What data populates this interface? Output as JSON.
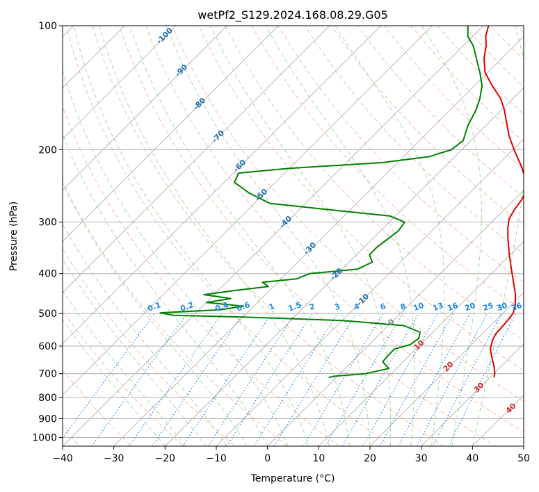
{
  "chart_data": {
    "type": "line",
    "title": "wetPf2_S129.2024.168.08.29.G05",
    "xlabel": "Temperature (°C)",
    "ylabel": "Pressure (hPa)",
    "xlim": [
      -40,
      50
    ],
    "ylim": [
      1050,
      100
    ],
    "y_scale": "log",
    "x_ticks": [
      -40,
      -30,
      -20,
      -10,
      0,
      10,
      20,
      30,
      40,
      50
    ],
    "y_ticks": [
      1000,
      900,
      800,
      700,
      600,
      500,
      400,
      300,
      200,
      100
    ],
    "grid": true,
    "skew": true,
    "isotherm_labels": [
      -100,
      -90,
      -80,
      -70,
      -60,
      -50,
      -40,
      -30,
      -20,
      -10,
      0,
      10,
      20,
      30,
      40
    ],
    "mixing_ratio_labels": [
      "0.1",
      "0.2",
      "0.4",
      "0.6",
      "1",
      "1.5",
      "2",
      "3",
      "4",
      "6",
      "8",
      "10",
      "13",
      "16",
      "20",
      "25",
      "30",
      "36"
    ],
    "colors": {
      "temperature": "#e00000",
      "dewpoint": "#008000",
      "dry_adiabat": "#f4a582",
      "moist_adiabat": "#9ecf9e",
      "mixing_ratio": "#1e88e5",
      "isotherm": "#b0b0b0",
      "isotherm_label_cold": "#1f6fb2",
      "isotherm_label_warm": "#d62728",
      "isotherm_label_zero": "#7f7f7f"
    },
    "series": [
      {
        "name": "Temperature",
        "points": [
          {
            "p": 715,
            "t": 30.8
          },
          {
            "p": 700,
            "t": 30.2
          },
          {
            "p": 670,
            "t": 28.5
          },
          {
            "p": 640,
            "t": 26.5
          },
          {
            "p": 610,
            "t": 24.5
          },
          {
            "p": 580,
            "t": 23.2
          },
          {
            "p": 560,
            "t": 22.6
          },
          {
            "p": 540,
            "t": 22.5
          },
          {
            "p": 520,
            "t": 22.3
          },
          {
            "p": 500,
            "t": 22.0
          },
          {
            "p": 480,
            "t": 21.0
          },
          {
            "p": 450,
            "t": 18.8
          },
          {
            "p": 420,
            "t": 16.0
          },
          {
            "p": 390,
            "t": 13.0
          },
          {
            "p": 360,
            "t": 9.8
          },
          {
            "p": 330,
            "t": 6.5
          },
          {
            "p": 310,
            "t": 4.3
          },
          {
            "p": 295,
            "t": 2.8
          },
          {
            "p": 280,
            "t": 2.0
          },
          {
            "p": 265,
            "t": 1.5
          },
          {
            "p": 250,
            "t": 0.5
          },
          {
            "p": 235,
            "t": -2.0
          },
          {
            "p": 220,
            "t": -5.0
          },
          {
            "p": 200,
            "t": -9.8
          },
          {
            "p": 185,
            "t": -13.5
          },
          {
            "p": 170,
            "t": -17.0
          },
          {
            "p": 160,
            "t": -19.5
          },
          {
            "p": 150,
            "t": -22.5
          },
          {
            "p": 140,
            "t": -26.5
          },
          {
            "p": 130,
            "t": -30.5
          },
          {
            "p": 120,
            "t": -33.5
          },
          {
            "p": 112,
            "t": -35.5
          },
          {
            "p": 106,
            "t": -37.5
          },
          {
            "p": 100,
            "t": -39.0
          }
        ]
      },
      {
        "name": "Dewpoint",
        "points": [
          {
            "p": 715,
            "t": -1.5
          },
          {
            "p": 710,
            "t": -0.5
          },
          {
            "p": 700,
            "t": 5.0
          },
          {
            "p": 680,
            "t": 8.5
          },
          {
            "p": 655,
            "t": 6.0
          },
          {
            "p": 630,
            "t": 5.8
          },
          {
            "p": 610,
            "t": 5.8
          },
          {
            "p": 595,
            "t": 8.0
          },
          {
            "p": 575,
            "t": 8.5
          },
          {
            "p": 555,
            "t": 7.5
          },
          {
            "p": 535,
            "t": 3.0
          },
          {
            "p": 520,
            "t": -10.0
          },
          {
            "p": 510,
            "t": -30.0
          },
          {
            "p": 505,
            "t": -44.0
          },
          {
            "p": 498,
            "t": -47.0
          },
          {
            "p": 490,
            "t": -36.0
          },
          {
            "p": 480,
            "t": -32.0
          },
          {
            "p": 470,
            "t": -40.0
          },
          {
            "p": 460,
            "t": -36.0
          },
          {
            "p": 450,
            "t": -42.0
          },
          {
            "p": 440,
            "t": -37.0
          },
          {
            "p": 430,
            "t": -31.0
          },
          {
            "p": 420,
            "t": -33.0
          },
          {
            "p": 412,
            "t": -27.0
          },
          {
            "p": 400,
            "t": -25.5
          },
          {
            "p": 390,
            "t": -17.0
          },
          {
            "p": 375,
            "t": -15.5
          },
          {
            "p": 360,
            "t": -17.5
          },
          {
            "p": 345,
            "t": -17.5
          },
          {
            "p": 330,
            "t": -17.0
          },
          {
            "p": 315,
            "t": -16.5
          },
          {
            "p": 300,
            "t": -17.0
          },
          {
            "p": 290,
            "t": -21.0
          },
          {
            "p": 280,
            "t": -34.0
          },
          {
            "p": 270,
            "t": -47.0
          },
          {
            "p": 255,
            "t": -53.0
          },
          {
            "p": 240,
            "t": -58.0
          },
          {
            "p": 228,
            "t": -59.0
          },
          {
            "p": 222,
            "t": -50.0
          },
          {
            "p": 215,
            "t": -33.0
          },
          {
            "p": 208,
            "t": -25.0
          },
          {
            "p": 200,
            "t": -22.0
          },
          {
            "p": 190,
            "t": -21.5
          },
          {
            "p": 175,
            "t": -23.5
          },
          {
            "p": 160,
            "t": -25.0
          },
          {
            "p": 150,
            "t": -26.5
          },
          {
            "p": 140,
            "t": -28.5
          },
          {
            "p": 130,
            "t": -31.5
          },
          {
            "p": 120,
            "t": -35.0
          },
          {
            "p": 112,
            "t": -38.0
          },
          {
            "p": 106,
            "t": -41.0
          },
          {
            "p": 100,
            "t": -43.0
          }
        ]
      }
    ]
  }
}
